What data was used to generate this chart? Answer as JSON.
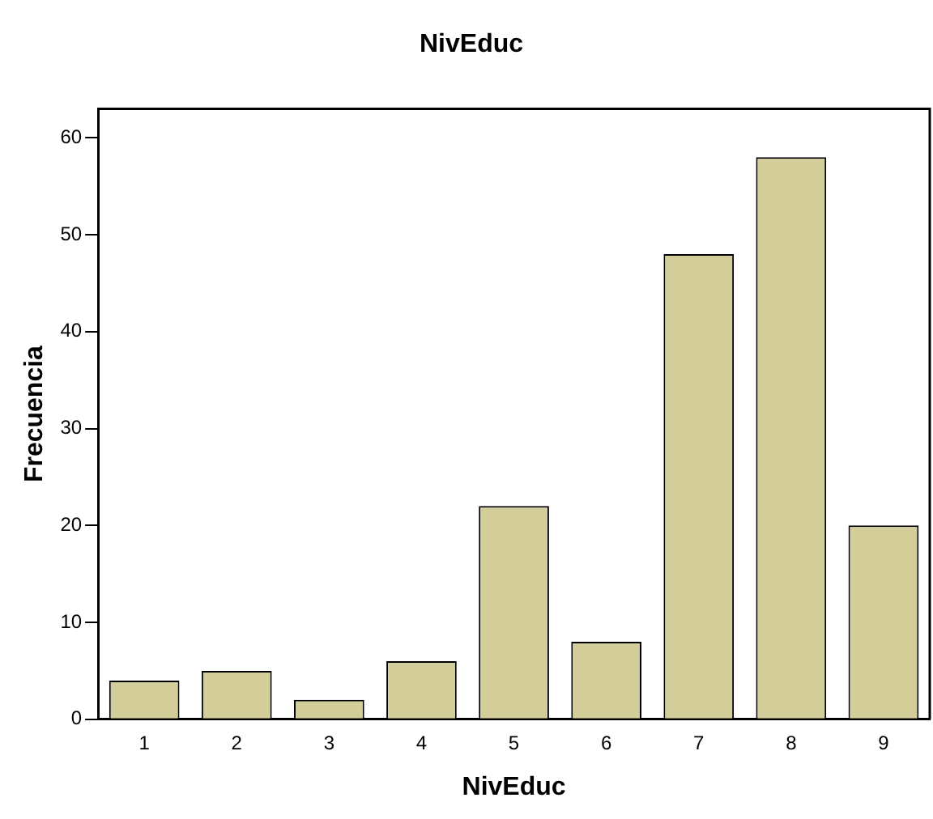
{
  "chart_data": {
    "type": "bar",
    "title": "NivEduc",
    "xlabel": "NivEduc",
    "ylabel": "Frecuencia",
    "categories": [
      "1",
      "2",
      "3",
      "4",
      "5",
      "6",
      "7",
      "8",
      "9"
    ],
    "values": [
      4,
      5,
      2,
      6,
      22,
      8,
      48,
      58,
      20
    ],
    "color": "#d3cd99",
    "ylim": [
      0,
      63
    ],
    "yticks": [
      0,
      10,
      20,
      30,
      40,
      50,
      60
    ],
    "grid": false,
    "legend": false
  }
}
